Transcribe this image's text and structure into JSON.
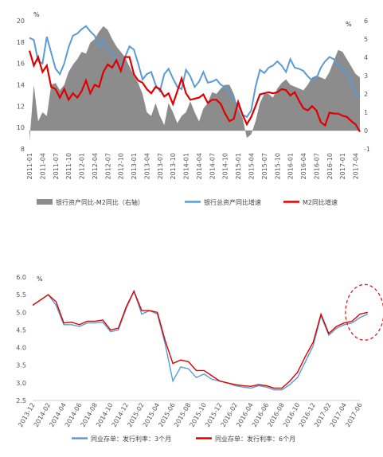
{
  "chart_data": [
    {
      "type": "line",
      "title": "",
      "y_unit_left": "%",
      "y_unit_right": "%",
      "ylim_left": [
        8,
        20
      ],
      "yticks_left": [
        "8",
        "10",
        "12",
        "14",
        "16",
        "18",
        "20"
      ],
      "ylim_right": [
        -1,
        6
      ],
      "yticks_right": [
        "-1",
        "0",
        "1",
        "2",
        "3",
        "4",
        "5",
        "6"
      ],
      "x_ticks": [
        "2011-01",
        "2011-04",
        "2011-07",
        "2011-10",
        "2012-01",
        "2012-04",
        "2012-07",
        "2012-10",
        "2013-01",
        "2013-04",
        "2013-07",
        "2013-10",
        "2014-01",
        "2014-04",
        "2014-07",
        "2014-10",
        "2015-01",
        "2015-04",
        "2015-07",
        "2015-10",
        "2016-01",
        "2016-04",
        "2016-07",
        "2016-10",
        "2017-01",
        "2017-04"
      ],
      "colors": {
        "spread": "#8c8c8c",
        "assets": "#5b9bd5",
        "m2": "#e00000"
      },
      "legend": [
        "银行资产同比-M2同比（右轴）",
        "银行总资产同比增速",
        "M2同比增速"
      ],
      "series": [
        {
          "name": "银行资产同比-M2同比（右轴）",
          "axis": "right",
          "kind": "area",
          "x": [
            0,
            1,
            2,
            3,
            4,
            5,
            6,
            7,
            8,
            9,
            10,
            11,
            12,
            13,
            14,
            15,
            16,
            17,
            18,
            19,
            20,
            21,
            22,
            23,
            24,
            25,
            26,
            27,
            28,
            29,
            30,
            31,
            32,
            33,
            34,
            35,
            36,
            37,
            38,
            39,
            40,
            41,
            42,
            43,
            44,
            45,
            46,
            47,
            48,
            49,
            50,
            51,
            52,
            53,
            54,
            55,
            56,
            57,
            58,
            59,
            60,
            61,
            62,
            63,
            64,
            65,
            66,
            67,
            68,
            69,
            70,
            71,
            72,
            73,
            74,
            75,
            76
          ],
          "values": [
            -0.6,
            2.5,
            0.5,
            1.0,
            0.8,
            2.5,
            2.6,
            2.2,
            2.5,
            3.2,
            3.6,
            3.9,
            4.3,
            4.2,
            4.8,
            5.0,
            5.4,
            5.7,
            5.5,
            5.0,
            4.6,
            4.3,
            4.0,
            3.5,
            3.0,
            2.6,
            2.0,
            1.0,
            0.8,
            1.5,
            0.8,
            0.3,
            1.5,
            1.0,
            0.4,
            0.8,
            1.0,
            1.6,
            1.0,
            0.5,
            1.2,
            1.5,
            2.1,
            2.0,
            2.3,
            2.5,
            2.5,
            2.0,
            1.2,
            0.7,
            -0.4,
            -0.2,
            0.5,
            1.5,
            2.0,
            2.0,
            1.8,
            2.3,
            2.6,
            2.8,
            2.5,
            2.4,
            2.3,
            2.2,
            2.5,
            2.9,
            3.0,
            2.9,
            2.8,
            3.2,
            3.8,
            4.4,
            4.3,
            3.9,
            3.5,
            3.1,
            2.9
          ]
        },
        {
          "name": "银行总资产同比增速",
          "axis": "left",
          "kind": "line",
          "x": [
            0,
            1,
            2,
            3,
            4,
            5,
            6,
            7,
            8,
            9,
            10,
            11,
            12,
            13,
            14,
            15,
            16,
            17,
            18,
            19,
            20,
            21,
            22,
            23,
            24,
            25,
            26,
            27,
            28,
            29,
            30,
            31,
            32,
            33,
            34,
            35,
            36,
            37,
            38,
            39,
            40,
            41,
            42,
            43,
            44,
            45,
            46,
            47,
            48,
            49,
            50,
            51,
            52,
            53,
            54,
            55,
            56,
            57,
            58,
            59,
            60,
            61,
            62,
            63,
            64,
            65,
            66,
            67,
            68,
            69,
            70,
            71,
            72,
            73,
            74,
            75,
            76
          ],
          "values": [
            18.4,
            18.2,
            16.2,
            16.0,
            18.5,
            17.0,
            15.5,
            15.0,
            16.0,
            17.5,
            18.6,
            18.8,
            19.2,
            19.5,
            19.0,
            18.6,
            17.6,
            18.2,
            17.3,
            17.0,
            16.2,
            15.8,
            16.6,
            17.6,
            17.3,
            16.0,
            14.5,
            15.0,
            15.2,
            14.0,
            13.4,
            15.0,
            15.5,
            14.6,
            13.8,
            13.6,
            15.4,
            14.8,
            13.8,
            14.3,
            15.2,
            14.2,
            14.3,
            14.5,
            14.0,
            13.8,
            13.2,
            12.6,
            12.0,
            11.2,
            11.0,
            11.6,
            13.8,
            15.4,
            15.1,
            15.6,
            15.8,
            16.2,
            15.8,
            15.2,
            16.4,
            15.6,
            15.5,
            15.3,
            14.8,
            14.4,
            14.6,
            15.6,
            16.2,
            16.6,
            16.4,
            15.8,
            15.4,
            15.3,
            14.2,
            13.2,
            12.9
          ]
        },
        {
          "name": "M2同比增速",
          "axis": "left",
          "kind": "line",
          "x": [
            0,
            1,
            2,
            3,
            4,
            5,
            6,
            7,
            8,
            9,
            10,
            11,
            12,
            13,
            14,
            15,
            16,
            17,
            18,
            19,
            20,
            21,
            22,
            23,
            24,
            25,
            26,
            27,
            28,
            29,
            30,
            31,
            32,
            33,
            34,
            35,
            36,
            37,
            38,
            39,
            40,
            41,
            42,
            43,
            44,
            45,
            46,
            47,
            48,
            49,
            50,
            51,
            52,
            53,
            54,
            55,
            56,
            57,
            58,
            59,
            60,
            61,
            62,
            63,
            64,
            65,
            66,
            67,
            68,
            69,
            70,
            71,
            72,
            73,
            74,
            75,
            76
          ],
          "values": [
            17.2,
            15.8,
            16.6,
            15.2,
            15.8,
            13.8,
            13.6,
            12.8,
            13.6,
            12.6,
            13.2,
            12.8,
            13.4,
            14.4,
            13.2,
            14.0,
            13.8,
            15.2,
            15.9,
            15.6,
            16.3,
            15.3,
            16.6,
            16.6,
            15.0,
            14.4,
            14.2,
            13.6,
            13.2,
            13.8,
            13.6,
            12.9,
            13.2,
            12.2,
            13.4,
            14.6,
            13.2,
            12.6,
            12.7,
            12.8,
            13.1,
            12.3,
            12.6,
            12.6,
            12.2,
            11.3,
            10.6,
            10.8,
            12.4,
            11.2,
            10.3,
            11.0,
            12.0,
            13.1,
            13.2,
            13.3,
            13.2,
            13.3,
            13.6,
            13.5,
            13.0,
            13.3,
            12.5,
            11.8,
            11.6,
            12.0,
            11.6,
            10.5,
            10.2,
            11.4,
            11.3,
            11.3,
            11.1,
            11.0,
            10.6,
            10.3,
            9.6
          ]
        }
      ]
    },
    {
      "type": "line",
      "title": "",
      "y_unit": "%",
      "ylim": [
        2.5,
        6.0
      ],
      "yticks": [
        "2.5",
        "3.0",
        "3.5",
        "4.0",
        "4.5",
        "5.0",
        "5.5",
        "6.0"
      ],
      "x_ticks": [
        "2013-12",
        "2014-02",
        "2014-04",
        "2014-06",
        "2014-08",
        "2014-10",
        "2014-12",
        "2015-02",
        "2015-04",
        "2015-06",
        "2015-08",
        "2015-10",
        "2015-12",
        "2016-02",
        "2016-04",
        "2016-06",
        "2016-08",
        "2016-10",
        "2016-12",
        "2017-02",
        "2017-04",
        "2017-06"
      ],
      "colors": {
        "m3": "#5b9bd5",
        "m6": "#e00000",
        "highlight": "#e02020"
      },
      "legend": [
        "同业存单：发行利率：3个月",
        "同业存单：发行利率：6个月"
      ],
      "series": [
        {
          "name": "同业存单：发行利率：3个月",
          "x": [
            0,
            0.5,
            1,
            1.5,
            2,
            2.5,
            3,
            3.5,
            4,
            4.5,
            5,
            5.5,
            6,
            6.5,
            7,
            7.5,
            8,
            8.5,
            9,
            9.5,
            10,
            10.5,
            11,
            11.5,
            12,
            12.5,
            13,
            13.5,
            14,
            14.5,
            15,
            15.5,
            16,
            16.5,
            17,
            17.5,
            18,
            18.5,
            19,
            19.5,
            20,
            20.5,
            21,
            21.5
          ],
          "values": [
            5.2,
            5.35,
            5.5,
            5.2,
            4.65,
            4.65,
            4.6,
            4.7,
            4.7,
            4.72,
            4.45,
            4.5,
            5.1,
            5.6,
            4.95,
            5.05,
            4.95,
            4.1,
            3.05,
            3.45,
            3.4,
            3.15,
            3.25,
            3.1,
            3.05,
            3.0,
            2.92,
            2.88,
            2.85,
            2.92,
            2.88,
            2.8,
            2.8,
            2.95,
            3.15,
            3.6,
            4.05,
            4.9,
            4.35,
            4.55,
            4.65,
            4.7,
            4.85,
            4.95
          ]
        },
        {
          "name": "同业存单：发行利率：6个月",
          "x": [
            0,
            0.5,
            1,
            1.5,
            2,
            2.5,
            3,
            3.5,
            4,
            4.5,
            5,
            5.5,
            6,
            6.5,
            7,
            7.5,
            8,
            8.5,
            9,
            9.5,
            10,
            10.5,
            11,
            11.5,
            12,
            12.5,
            13,
            13.5,
            14,
            14.5,
            15,
            15.5,
            16,
            16.5,
            17,
            17.5,
            18,
            18.5,
            19,
            19.5,
            20,
            20.5,
            21,
            21.5
          ],
          "values": [
            5.2,
            5.35,
            5.5,
            5.3,
            4.7,
            4.72,
            4.65,
            4.75,
            4.75,
            4.78,
            4.5,
            4.55,
            5.15,
            5.6,
            5.05,
            5.05,
            5.0,
            4.2,
            3.55,
            3.65,
            3.6,
            3.35,
            3.35,
            3.2,
            3.05,
            3.0,
            2.95,
            2.92,
            2.9,
            2.95,
            2.92,
            2.85,
            2.85,
            3.05,
            3.3,
            3.75,
            4.15,
            4.95,
            4.4,
            4.6,
            4.7,
            4.75,
            4.95,
            5.0
          ]
        }
      ]
    }
  ]
}
